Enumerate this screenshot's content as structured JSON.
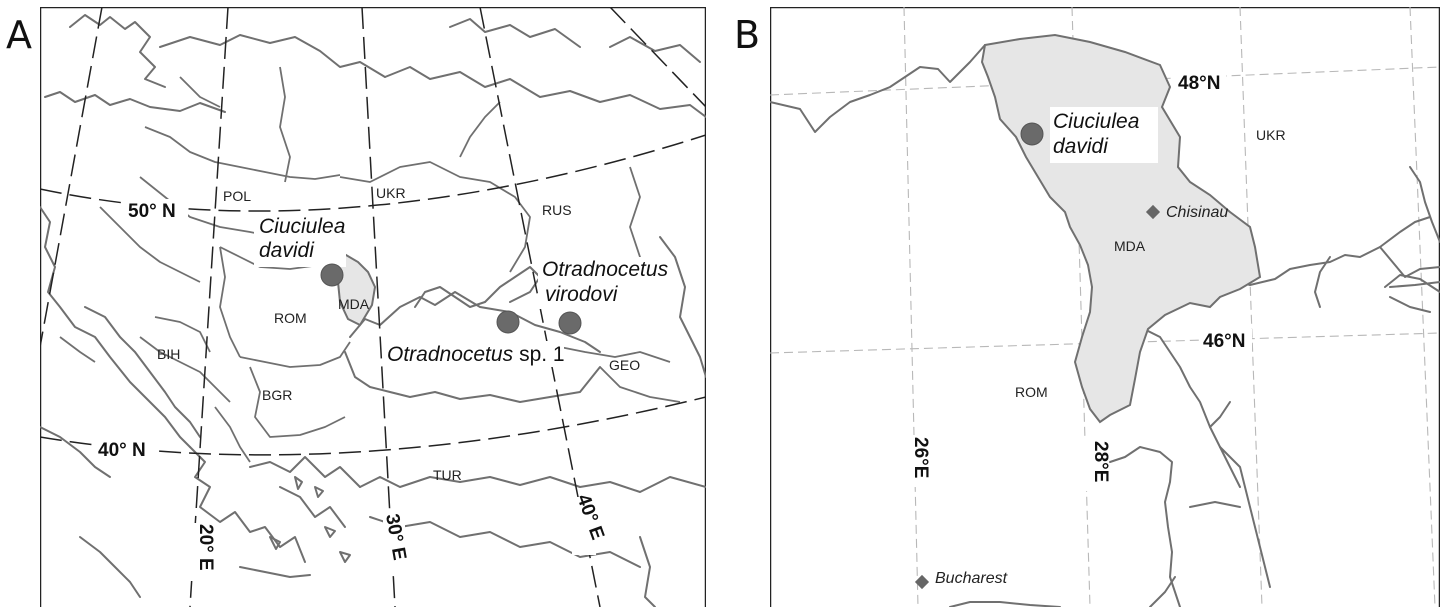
{
  "panels": {
    "a": {
      "letter": "A",
      "countries": [
        "POL",
        "UKR",
        "RUS",
        "ROM",
        "MDA",
        "BIH",
        "BGR",
        "GEO",
        "TUR"
      ],
      "latitudes": [
        "50° N",
        "40° N"
      ],
      "longitudes": [
        "20° E",
        "30° E",
        "40° E"
      ],
      "species": {
        "ciuciulea_line1": "Ciuciulea",
        "ciuciulea_line2": "davidi",
        "otradnocetus_sp_name": "Otradnocetus",
        "otradnocetus_sp_suffix": "sp. 1",
        "virodovi_line1": "Otradnocetus",
        "virodovi_line2": "virodovi"
      }
    },
    "b": {
      "letter": "B",
      "countries": [
        "UKR",
        "MDA",
        "ROM"
      ],
      "latitudes": [
        "48°N",
        "46°N"
      ],
      "longitudes": [
        "26°E",
        "28°E"
      ],
      "cities": [
        "Chisinau",
        "Bucharest"
      ],
      "species": {
        "line1": "Ciuciulea",
        "line2": "davidi"
      }
    }
  },
  "colors": {
    "land_outline": "#707070",
    "moldova_fill": "#e6e6e6",
    "site_marker": "#6a6a6a",
    "graticule_a": "#222222",
    "graticule_b": "#b8b8b8"
  },
  "icons": {
    "fossil_site": "filled-circle",
    "city": "diamond"
  }
}
